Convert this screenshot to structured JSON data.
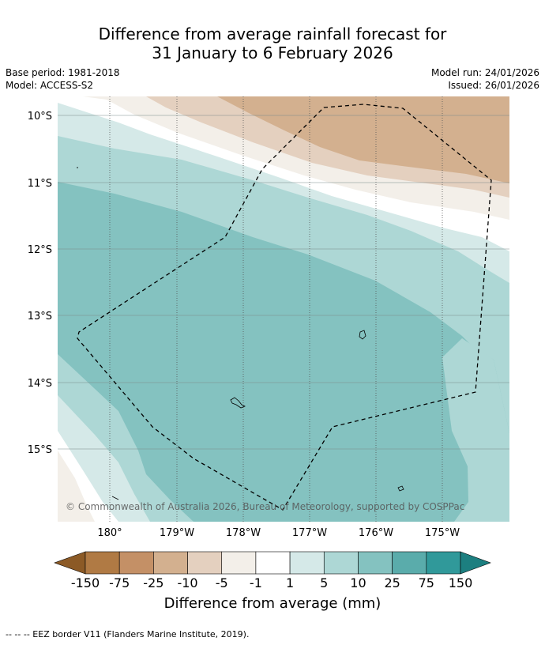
{
  "header": {
    "title_line1": "Difference from average rainfall forecast for",
    "title_line2": "31 January to 6 February 2026",
    "base_period": "Base period: 1981-2018",
    "model": "Model: ACCESS-S2",
    "model_run": "Model run: 24/01/2026",
    "issued": "Issued: 26/01/2026"
  },
  "map": {
    "lat_labels": [
      "10°S",
      "11°S",
      "12°S",
      "13°S",
      "14°S",
      "15°S"
    ],
    "lon_labels": [
      "180°",
      "179°W",
      "178°W",
      "177°W",
      "176°W",
      "175°W"
    ],
    "copyright": "© Commonwealth of Australia 2026, Bureau of Meteorology, supported by COSPPac"
  },
  "colorbar": {
    "ticks": [
      "-150",
      "-75",
      "-25",
      "-10",
      "-5",
      "-1",
      "1",
      "5",
      "10",
      "25",
      "75",
      "150"
    ],
    "colors": [
      "#8c5a26",
      "#b07a44",
      "#c49066",
      "#d3b08f",
      "#e4d0bf",
      "#f3efe9",
      "#ffffff",
      "#d5e9e8",
      "#add7d5",
      "#84c2c0",
      "#5aacab",
      "#30999a",
      "#1c7f80"
    ],
    "label": "Difference from average (mm)"
  },
  "footer": {
    "eez_note": "-- -- -- EEZ border V11 (Flanders Marine Institute, 2019)."
  }
}
